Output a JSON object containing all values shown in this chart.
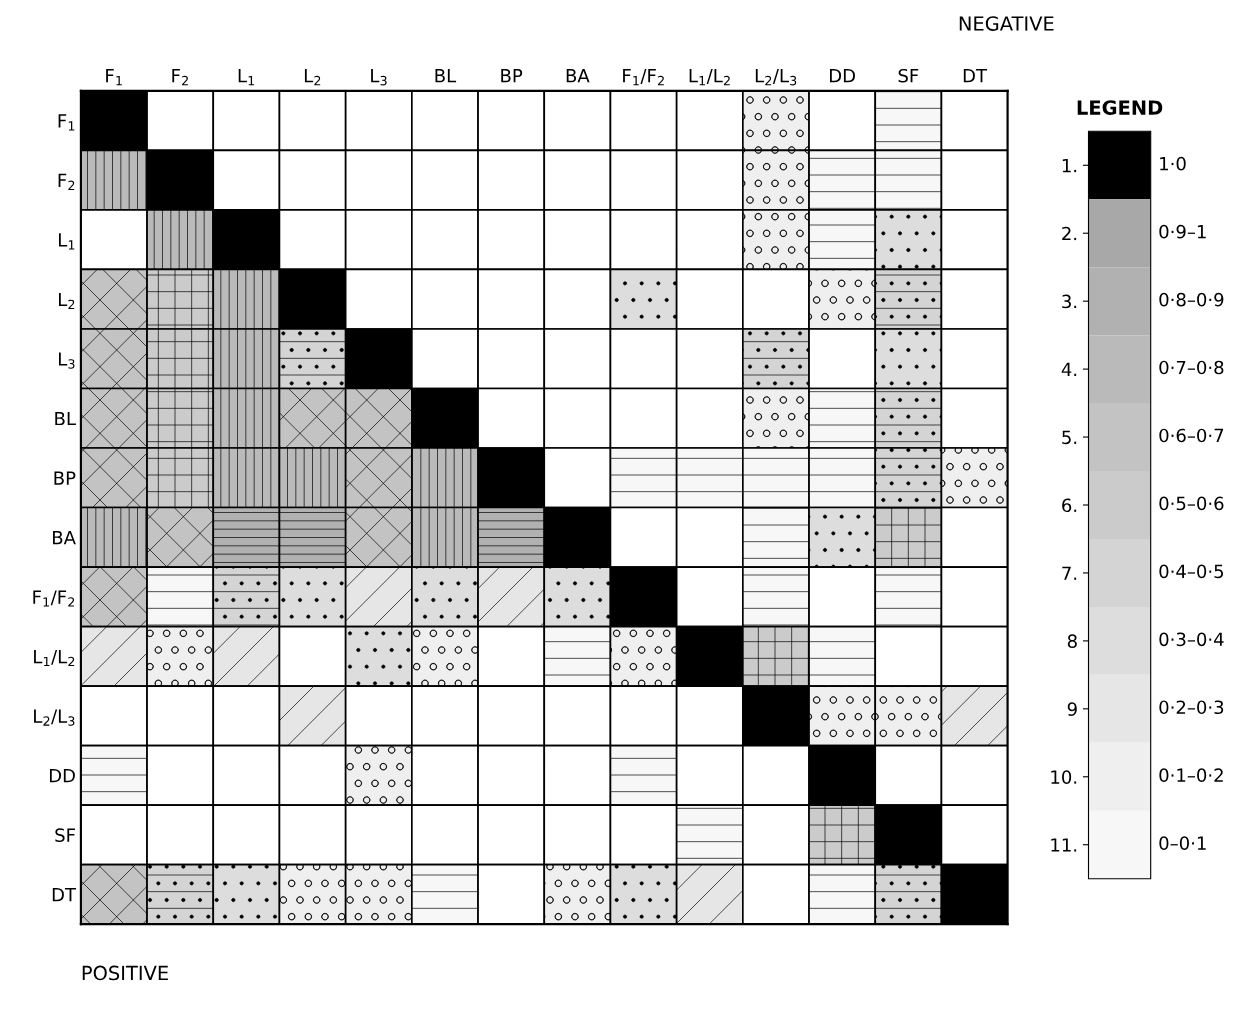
{
  "chart_data": {
    "type": "heatmap",
    "categories": [
      "F$_{1}$",
      "F$_{2}$",
      "L$_{1}$",
      "L$_{2}$",
      "L$_{3}$",
      "BL",
      "BP",
      "BA",
      "F$_{1}$/F$_{2}$",
      "L$_{1}$/L$_{2}$",
      "L$_{2}$/L$_{3}$",
      "DD",
      "SF",
      "DT"
    ],
    "y_categories": [
      "F$_{1}$",
      "F$_{2}$",
      "L$_{1}$",
      "L$_{2}$",
      "L$_{3}$",
      "BL",
      "BP",
      "BA",
      "F$_{1}$/F$_{2}$",
      "L$_{1}$/L$_{2}$",
      "L$_{2}$/L$_{3}$",
      "DD",
      "SF",
      "DT"
    ],
    "cells": [
      [
        1,
        null,
        null,
        null,
        null,
        null,
        null,
        null,
        null,
        null,
        10,
        null,
        11,
        null
      ],
      [
        4,
        1,
        null,
        null,
        null,
        null,
        null,
        null,
        null,
        null,
        10,
        11,
        11,
        null
      ],
      [
        null,
        4,
        1,
        null,
        null,
        null,
        null,
        null,
        null,
        null,
        10,
        11,
        8,
        null
      ],
      [
        5,
        6,
        4,
        1,
        null,
        null,
        null,
        null,
        8,
        null,
        null,
        10,
        7,
        null
      ],
      [
        5,
        6,
        4,
        7,
        1,
        null,
        null,
        null,
        null,
        null,
        7,
        null,
        8,
        null
      ],
      [
        5,
        6,
        4,
        5,
        5,
        1,
        null,
        null,
        null,
        null,
        10,
        11,
        7,
        null
      ],
      [
        5,
        6,
        4,
        4,
        5,
        4,
        1,
        null,
        11,
        11,
        11,
        11,
        7,
        10
      ],
      [
        4,
        5,
        3,
        3,
        5,
        4,
        3,
        1,
        null,
        null,
        11,
        8,
        6,
        null
      ],
      [
        5,
        11,
        7,
        8,
        9,
        8,
        9,
        8,
        1,
        null,
        11,
        null,
        11,
        null
      ],
      [
        9,
        10,
        9,
        null,
        8,
        10,
        null,
        11,
        10,
        1,
        6,
        11,
        null,
        null
      ],
      [
        null,
        null,
        null,
        9,
        null,
        null,
        null,
        null,
        null,
        null,
        1,
        10,
        10,
        9
      ],
      [
        11,
        null,
        null,
        null,
        10,
        null,
        null,
        null,
        11,
        null,
        null,
        1,
        null,
        null
      ],
      [
        null,
        null,
        null,
        null,
        null,
        null,
        null,
        null,
        null,
        11,
        null,
        6,
        1,
        null
      ],
      [
        5,
        7,
        8,
        10,
        10,
        11,
        null,
        10,
        8,
        9,
        null,
        11,
        7,
        1
      ]
    ],
    "clim": [
      0.5,
      11.5
    ],
    "cticks": [
      {
        "value": 1,
        "label": "1."
      },
      {
        "value": 2,
        "label": "2."
      },
      {
        "value": 3,
        "label": "3."
      },
      {
        "value": 4,
        "label": "4."
      },
      {
        "value": 5,
        "label": "5."
      },
      {
        "value": 6,
        "label": "6."
      },
      {
        "value": 7,
        "label": "7."
      },
      {
        "value": 8,
        "label": "8"
      },
      {
        "value": 9,
        "label": "9"
      },
      {
        "value": 10,
        "label": "10."
      },
      {
        "value": 11,
        "label": "11."
      }
    ],
    "legend_title": "LEGEND",
    "annotations": [
      "NEGATIVE",
      "1·0",
      "0·9–1",
      "0·8–0·9",
      "0·7–0·8",
      "0·6–0·7",
      "0·5–0·6",
      "0·4–0·5",
      "0·3–0·4",
      "0·2–0·3",
      "0·1–0·2",
      "0–0·1",
      "POSITIVE"
    ]
  }
}
